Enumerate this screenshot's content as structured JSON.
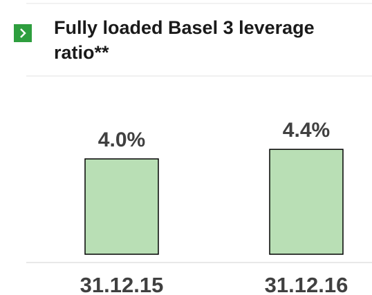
{
  "chart_data": {
    "type": "bar",
    "title": "Fully loaded Basel 3 leverage ratio**",
    "categories": [
      "31.12.15",
      "31.12.16"
    ],
    "values": [
      4.0,
      4.4
    ],
    "value_labels": [
      "4.0%",
      "4.4%"
    ],
    "color": "#b9dfb5"
  }
}
